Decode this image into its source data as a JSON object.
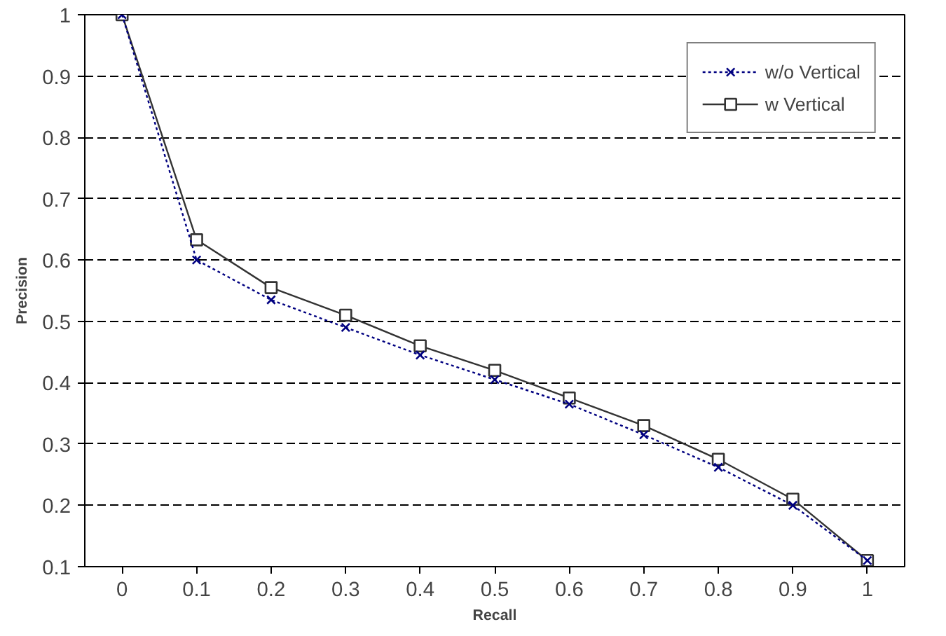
{
  "chart_data": {
    "type": "line",
    "xlabel": "Recall",
    "ylabel": "Precision",
    "categories": [
      "0",
      "0.1",
      "0.2",
      "0.3",
      "0.4",
      "0.5",
      "0.6",
      "0.7",
      "0.8",
      "0.9",
      "1"
    ],
    "series": [
      {
        "name": "w/o Vertical",
        "color": "#000080",
        "marker": "cross",
        "line_style": "dotted",
        "values": [
          1.0,
          0.6,
          0.535,
          0.49,
          0.445,
          0.405,
          0.365,
          0.315,
          0.262,
          0.2,
          0.11
        ]
      },
      {
        "name": "w Vertical",
        "color": "#333333",
        "marker": "square",
        "line_style": "solid",
        "values": [
          1.0,
          0.633,
          0.555,
          0.51,
          0.46,
          0.42,
          0.375,
          0.33,
          0.275,
          0.21,
          0.11
        ]
      }
    ],
    "ylim": [
      0.1,
      1
    ],
    "yticks": [
      0.1,
      0.2,
      0.3,
      0.4,
      0.5,
      0.6,
      0.7,
      0.8,
      0.9,
      1
    ],
    "grid": "y",
    "legend": "top right"
  }
}
